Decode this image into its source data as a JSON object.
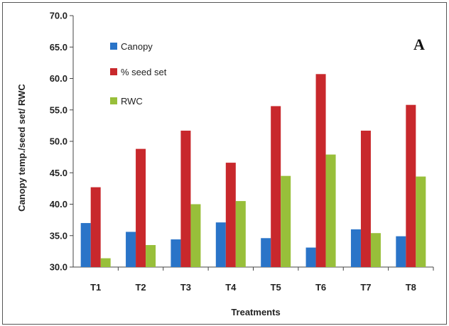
{
  "chart_data": {
    "type": "bar",
    "panel_label": "A",
    "xlabel": "Treatments",
    "ylabel": "Canopy temp./seed set/ RWC",
    "categories": [
      "T1",
      "T2",
      "T3",
      "T4",
      "T5",
      "T6",
      "T7",
      "T8"
    ],
    "series": [
      {
        "name": "Canopy",
        "color": "#2a74c8",
        "values": [
          37.0,
          35.6,
          34.4,
          37.1,
          34.6,
          33.1,
          36.0,
          34.9
        ]
      },
      {
        "name": "% seed set",
        "color": "#c8282c",
        "values": [
          42.7,
          48.8,
          51.7,
          46.6,
          55.6,
          60.7,
          51.7,
          55.8
        ]
      },
      {
        "name": "RWC",
        "color": "#98bf3a",
        "values": [
          31.4,
          33.5,
          40.0,
          40.5,
          44.5,
          47.9,
          35.4,
          44.4
        ]
      }
    ],
    "ylim": [
      30.0,
      70.0
    ],
    "yticks": [
      "30.0",
      "35.0",
      "40.0",
      "45.0",
      "50.0",
      "55.0",
      "60.0",
      "65.0",
      "70.0"
    ],
    "grid": false,
    "legend_position": "top-left"
  }
}
